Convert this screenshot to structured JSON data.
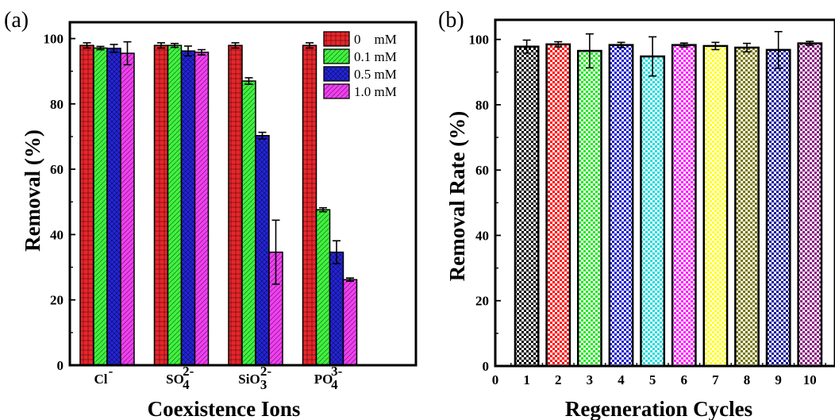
{
  "chart_data": [
    {
      "panel_label": "(a)",
      "type": "bar",
      "xlabel": "Coexistence Ions",
      "ylabel": "Removal (%)",
      "ylim": [
        0,
        105
      ],
      "yticks": [
        0,
        20,
        40,
        60,
        80,
        100
      ],
      "legend_position": "top-right",
      "categories": [
        {
          "base": "Cl",
          "sup": "-",
          "sub": ""
        },
        {
          "base": "SO",
          "sup": "2-",
          "sub": "4"
        },
        {
          "base": "SiO",
          "sup": "2-",
          "sub": "3"
        },
        {
          "base": "PO",
          "sup": "3-",
          "sub": "4"
        }
      ],
      "series": [
        {
          "name": "0    mM",
          "color": "#e8262b",
          "pattern": "grid",
          "values": [
            97.9,
            97.9,
            97.9,
            97.9
          ],
          "errors": [
            0.8,
            0.8,
            0.8,
            0.8
          ]
        },
        {
          "name": "0.1 mM",
          "color": "#3ff23f",
          "pattern": "diag",
          "values": [
            97.1,
            97.9,
            87.0,
            47.6
          ],
          "errors": [
            0.5,
            0.6,
            1.0,
            0.6
          ]
        },
        {
          "name": "0.5 mM",
          "color": "#2424dd",
          "pattern": "cross",
          "values": [
            97.0,
            96.2,
            70.3,
            34.6
          ],
          "errors": [
            1.2,
            1.5,
            1.0,
            3.5
          ]
        },
        {
          "name": "1.0 mM",
          "color": "#f23ff2",
          "pattern": "diag2",
          "values": [
            95.5,
            95.8,
            34.6,
            26.2
          ],
          "errors": [
            3.5,
            0.8,
            9.8,
            0.5
          ]
        }
      ]
    },
    {
      "panel_label": "(b)",
      "type": "bar",
      "xlabel": "Regeneration Cycles",
      "ylabel": "Removal Rate (%)",
      "xlim": [
        0,
        10.8
      ],
      "ylim": [
        0,
        106
      ],
      "xticks": [
        0,
        1,
        2,
        3,
        4,
        5,
        6,
        7,
        8,
        9,
        10
      ],
      "yticks": [
        0,
        20,
        40,
        60,
        80,
        100
      ],
      "x": [
        1,
        2,
        3,
        4,
        5,
        6,
        7,
        8,
        9,
        10
      ],
      "values": [
        97.8,
        98.5,
        96.5,
        98.3,
        94.8,
        98.3,
        98.0,
        97.5,
        96.8,
        98.8
      ],
      "errors": [
        2.0,
        0.8,
        5.2,
        0.8,
        6.0,
        0.6,
        1.1,
        1.3,
        5.6,
        0.6
      ],
      "colors": [
        "#000000",
        "#ff0000",
        "#28e628",
        "#1a1acc",
        "#2bdcdc",
        "#ff1aff",
        "#ffff1a",
        "#77770d",
        "#14149c",
        "#8a1a80"
      ]
    }
  ]
}
